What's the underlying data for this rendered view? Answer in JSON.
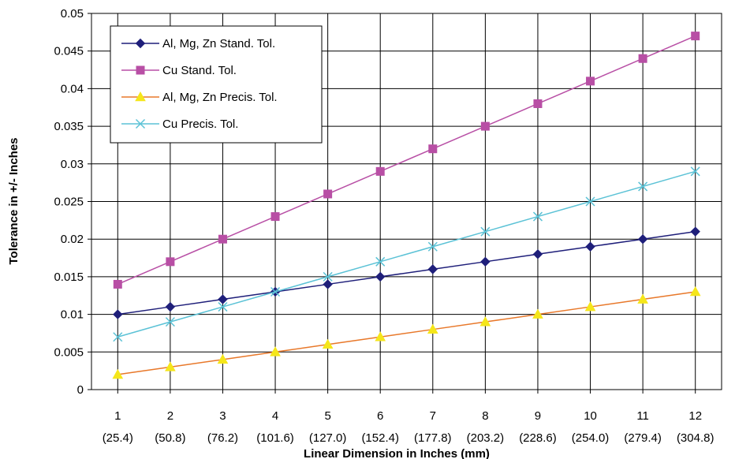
{
  "chart_data": {
    "type": "line",
    "title": "",
    "xlabel": "Linear Dimension in Inches (mm)",
    "ylabel": "Tolerance in +/- Inches",
    "categories": [
      "1",
      "2",
      "3",
      "4",
      "5",
      "6",
      "7",
      "8",
      "9",
      "10",
      "11",
      "12"
    ],
    "category_sublabels": [
      "(25.4)",
      "(50.8)",
      "(76.2)",
      "(101.6)",
      "(127.0)",
      "(152.4)",
      "(177.8)",
      "(203.2)",
      "(228.6)",
      "(254.0)",
      "(279.4)",
      "(304.8)"
    ],
    "ylim": [
      0,
      0.05
    ],
    "yticks": [
      "0",
      "0.005",
      "0.01",
      "0.015",
      "0.02",
      "0.025",
      "0.03",
      "0.035",
      "0.04",
      "0.045",
      "0.05"
    ],
    "grid": true,
    "legend": "top-left",
    "series": [
      {
        "name": "Al, Mg, Zn Stand. Tol.",
        "color": "#1f1f7a",
        "marker": "diamond",
        "values": [
          0.01,
          0.011,
          0.012,
          0.013,
          0.014,
          0.015,
          0.016,
          0.017,
          0.018,
          0.019,
          0.02,
          0.021
        ]
      },
      {
        "name": "Cu Stand. Tol.",
        "color": "#b84fa5",
        "marker": "square",
        "values": [
          0.014,
          0.017,
          0.02,
          0.023,
          0.026,
          0.029,
          0.032,
          0.035,
          0.038,
          0.041,
          0.044,
          0.047
        ]
      },
      {
        "name": "Al, Mg, Zn Precis. Tol.",
        "color": "#e8782a",
        "marker_color": "#f5e61a",
        "marker": "triangle",
        "values": [
          0.002,
          0.003,
          0.004,
          0.005,
          0.006,
          0.007,
          0.008,
          0.009,
          0.01,
          0.011,
          0.012,
          0.013
        ]
      },
      {
        "name": "Cu Precis. Tol.",
        "color": "#5bc2d6",
        "marker": "x",
        "values": [
          0.007,
          0.009,
          0.011,
          0.013,
          0.015,
          0.017,
          0.019,
          0.021,
          0.023,
          0.025,
          0.027,
          0.029
        ]
      }
    ]
  }
}
